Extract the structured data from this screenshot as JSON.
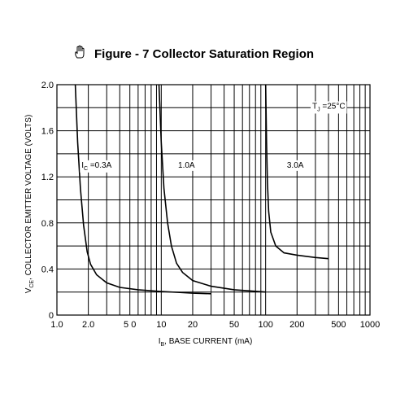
{
  "chart_data": {
    "type": "line",
    "title": "Figure - 7 Collector Saturation Region",
    "x_scale": "log",
    "xlim": [
      1,
      1000
    ],
    "ylim": [
      0,
      2.0
    ],
    "ylabel_main": "V",
    "ylabel_sub": "CE",
    "ylabel_rest": ", COLLECTOR EMITTER VOLTAGE (VOLTS)",
    "xlabel_main": "I",
    "xlabel_sub": "B",
    "xlabel_rest": ", BASE CURRENT (mA)",
    "x_ticks": [
      {
        "value": 1,
        "label": "1.0"
      },
      {
        "value": 2,
        "label": "2.0"
      },
      {
        "value": 5,
        "label": "5 0"
      },
      {
        "value": 10,
        "label": "10"
      },
      {
        "value": 20,
        "label": "20"
      },
      {
        "value": 50,
        "label": "50"
      },
      {
        "value": 100,
        "label": "100"
      },
      {
        "value": 200,
        "label": "200"
      },
      {
        "value": 500,
        "label": "500"
      },
      {
        "value": 1000,
        "label": "1000"
      }
    ],
    "y_ticks": [
      {
        "value": 0,
        "label": "0"
      },
      {
        "value": 0.4,
        "label": "0.4"
      },
      {
        "value": 0.8,
        "label": "0.8"
      },
      {
        "value": 1.2,
        "label": "1.2"
      },
      {
        "value": 1.6,
        "label": "1.6"
      },
      {
        "value": 2.0,
        "label": "2.0"
      }
    ],
    "y_grid": [
      0,
      0.2,
      0.4,
      0.6,
      0.8,
      1.0,
      1.2,
      1.4,
      1.6,
      1.8,
      2.0
    ],
    "grid": true,
    "series": [
      {
        "name": "IC = 0.3A",
        "points": [
          [
            1.5,
            2.0
          ],
          [
            1.58,
            1.5
          ],
          [
            1.68,
            1.1
          ],
          [
            1.8,
            0.78
          ],
          [
            1.95,
            0.55
          ],
          [
            2.1,
            0.44
          ],
          [
            2.4,
            0.35
          ],
          [
            3.0,
            0.28
          ],
          [
            4.0,
            0.24
          ],
          [
            6.0,
            0.22
          ],
          [
            10.0,
            0.205
          ],
          [
            20.0,
            0.19
          ],
          [
            30.0,
            0.185
          ]
        ]
      },
      {
        "name": "1.0A",
        "points": [
          [
            9.5,
            2.0
          ],
          [
            10.0,
            1.5
          ],
          [
            10.6,
            1.1
          ],
          [
            11.5,
            0.8
          ],
          [
            12.5,
            0.6
          ],
          [
            14.0,
            0.45
          ],
          [
            16.0,
            0.37
          ],
          [
            20.0,
            0.3
          ],
          [
            30.0,
            0.25
          ],
          [
            50.0,
            0.22
          ],
          [
            100.0,
            0.2
          ]
        ]
      },
      {
        "name": "3.0A",
        "points": [
          [
            100.0,
            2.0
          ],
          [
            102.0,
            1.5
          ],
          [
            104.0,
            1.15
          ],
          [
            107.0,
            0.9
          ],
          [
            112.0,
            0.72
          ],
          [
            125.0,
            0.6
          ],
          [
            150.0,
            0.54
          ],
          [
            200.0,
            0.52
          ],
          [
            300.0,
            0.5
          ],
          [
            400.0,
            0.49
          ]
        ]
      }
    ],
    "annotations": {
      "temp_main": "T",
      "temp_sub": "J",
      "temp_rest": " =25°C",
      "curve_labels": [
        {
          "main": "I",
          "sub": "C",
          "rest": " =0.3A",
          "x": 1.72,
          "y": 1.28
        },
        {
          "main": "1.0A",
          "sub": "",
          "rest": "",
          "x": 14.5,
          "y": 1.28
        },
        {
          "main": "3.0A",
          "sub": "",
          "rest": "",
          "x": 160.0,
          "y": 1.28
        }
      ]
    }
  },
  "icons": {
    "title_icon": "hand-pointer-icon"
  }
}
